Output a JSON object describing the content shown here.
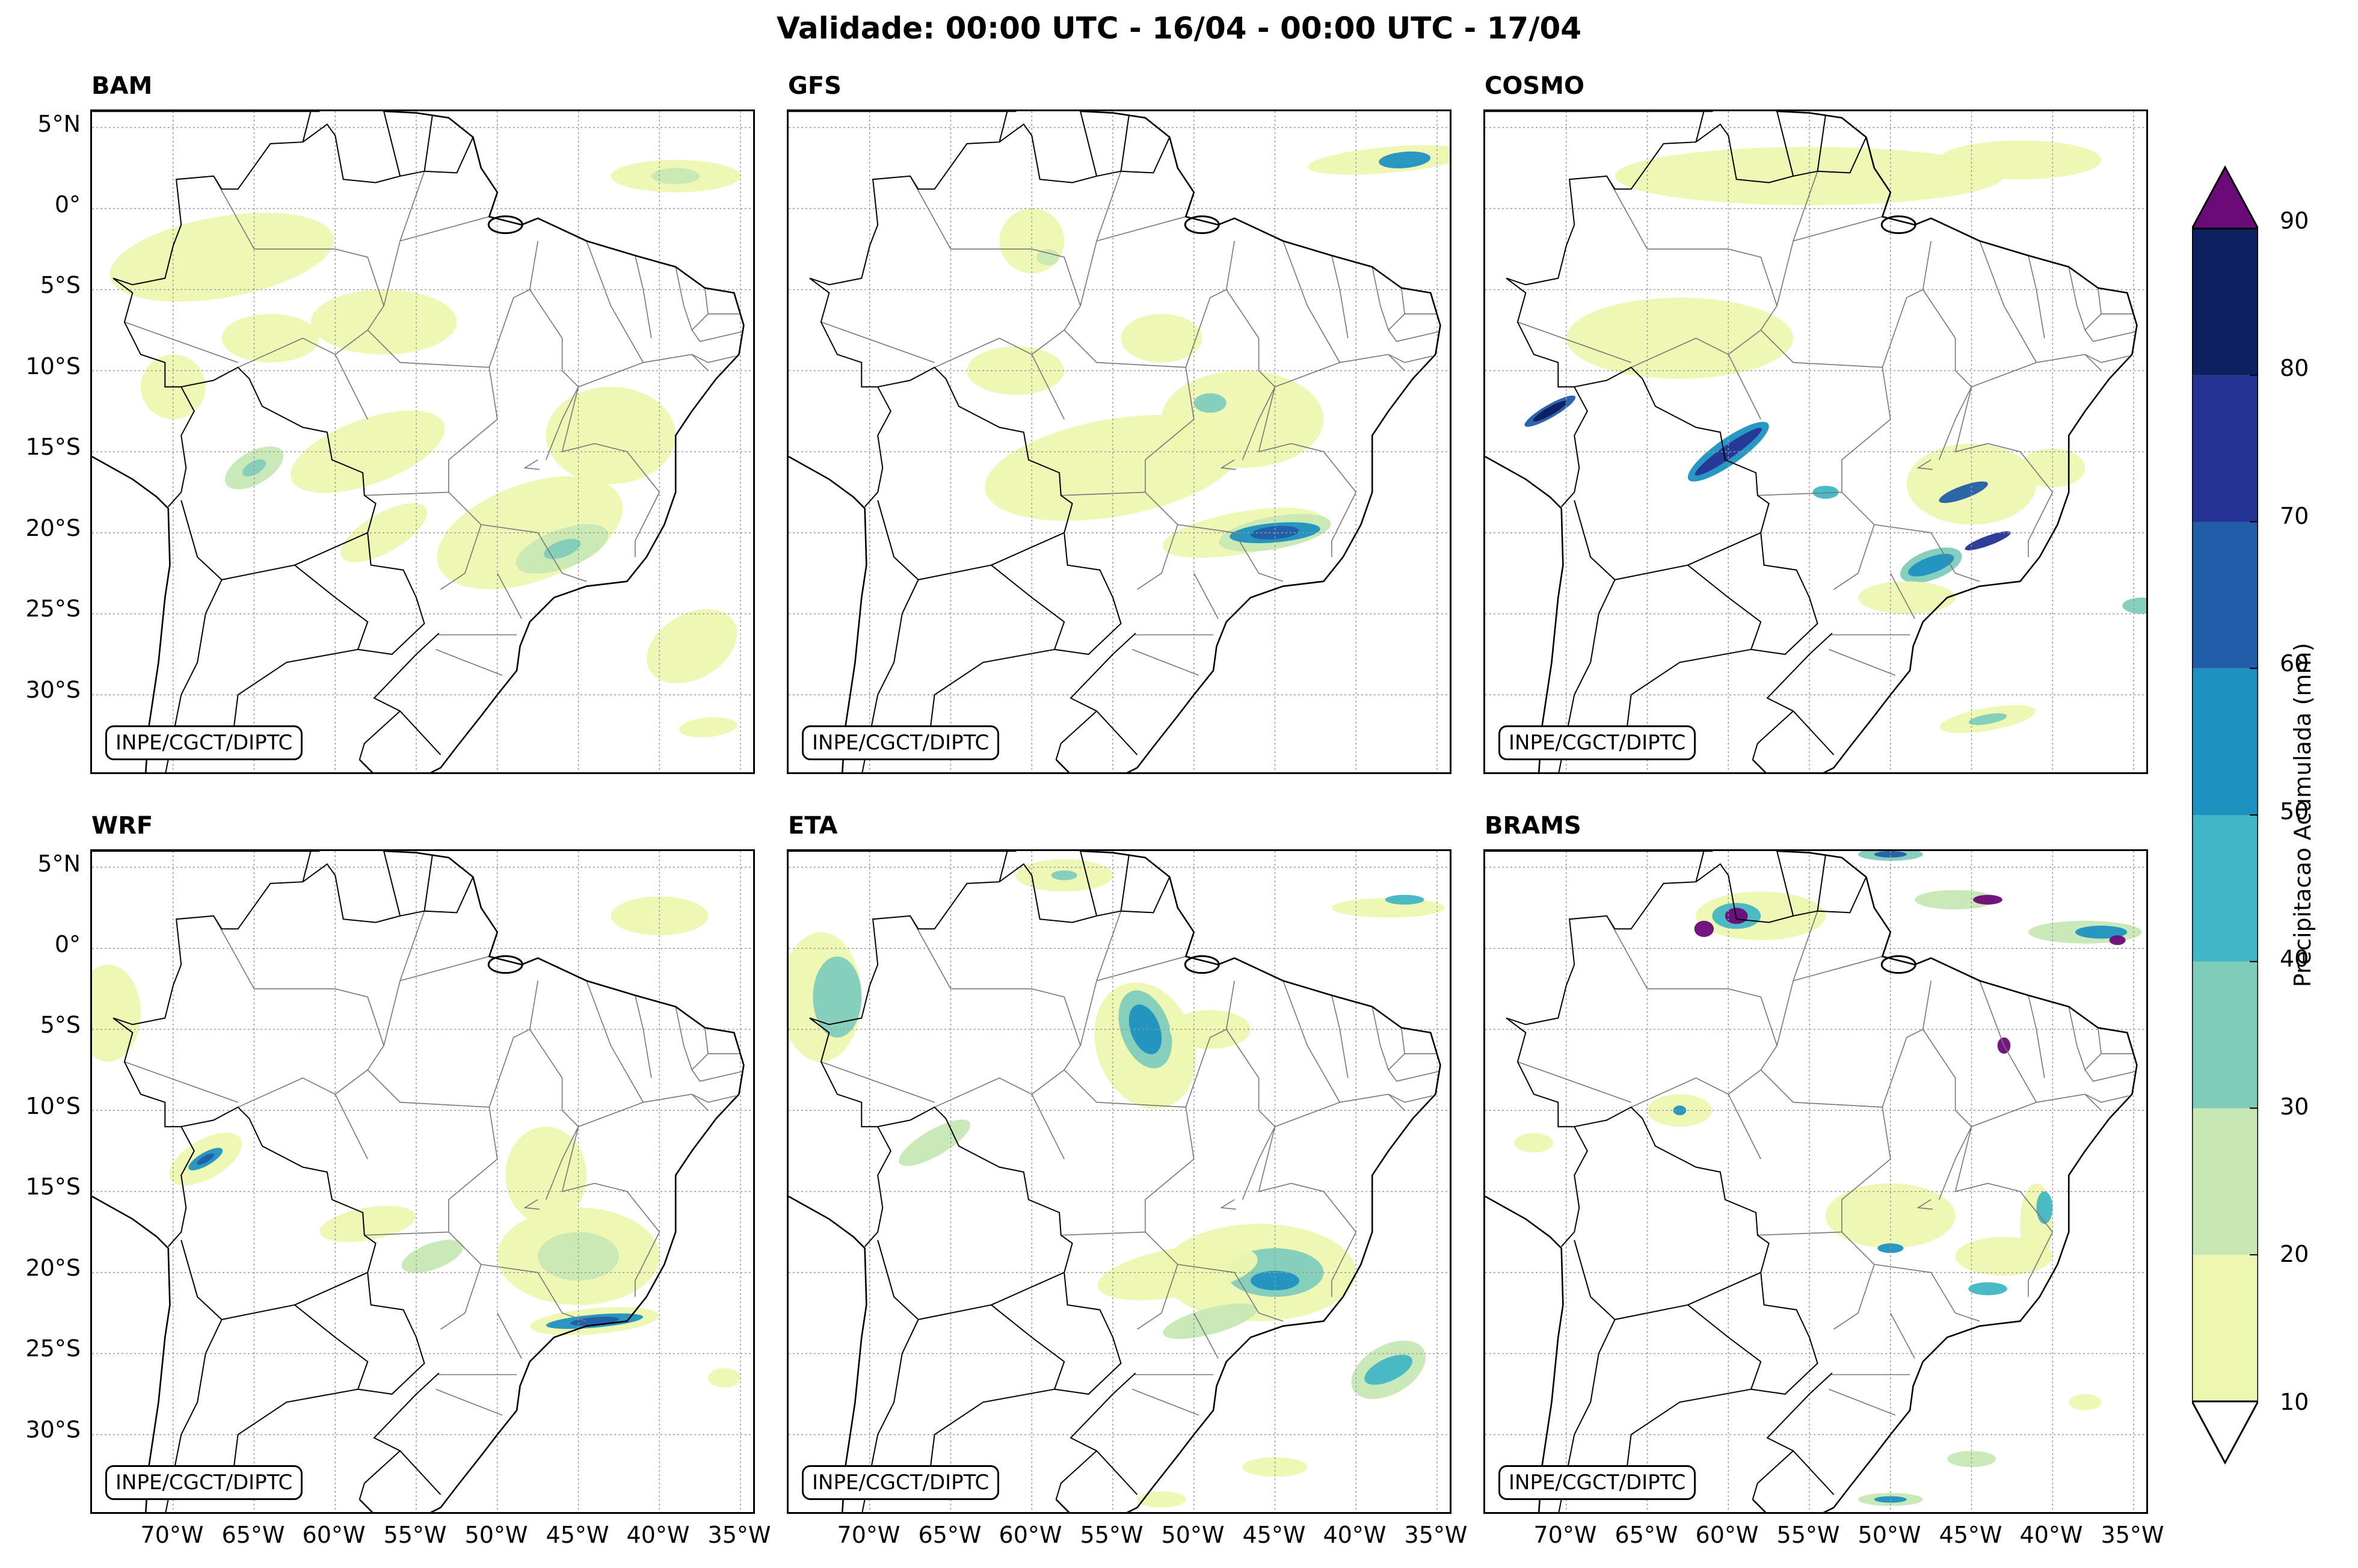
{
  "title": "Validade: 00:00 UTC - 16/04 - 00:00 UTC - 17/04",
  "credit": "INPE/CGCT/DIPTC",
  "panels": [
    {
      "id": "bam",
      "label": "BAM"
    },
    {
      "id": "gfs",
      "label": "GFS"
    },
    {
      "id": "cosmo",
      "label": "COSMO"
    },
    {
      "id": "wrf",
      "label": "WRF"
    },
    {
      "id": "eta",
      "label": "ETA"
    },
    {
      "id": "brams",
      "label": "BRAMS"
    }
  ],
  "lat_ticks": [
    "5°N",
    "0°",
    "5°S",
    "10°S",
    "15°S",
    "20°S",
    "25°S",
    "30°S"
  ],
  "lon_ticks": [
    "70°W",
    "65°W",
    "60°W",
    "55°W",
    "50°W",
    "45°W",
    "40°W",
    "35°W"
  ],
  "colorbar": {
    "label": "Precipitacao Acumulada (mm)",
    "ticks": [
      "10",
      "20",
      "30",
      "40",
      "50",
      "60",
      "70",
      "80",
      "90"
    ],
    "colors": [
      "#edf7b0",
      "#c7e8b4",
      "#7fccbb",
      "#41b6c4",
      "#1d91c0",
      "#225ea8",
      "#253494",
      "#0c1f5e"
    ],
    "over_color": "#6b0a78",
    "under_color": "#ffffff",
    "extend": "both"
  },
  "map_extent": {
    "lon_min": -75,
    "lon_max": -34,
    "lat_min": -35,
    "lat_max": 6
  }
}
